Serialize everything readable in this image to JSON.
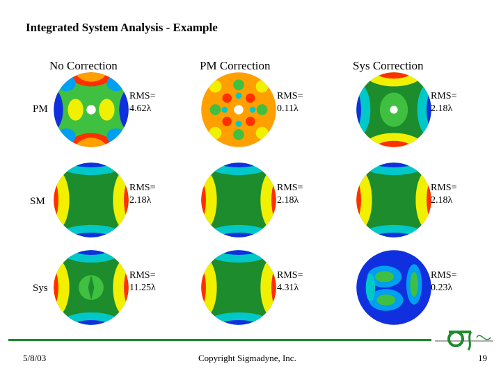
{
  "title": "Integrated System Analysis - Example",
  "columns": [
    "No Correction",
    "PM Correction",
    "Sys Correction"
  ],
  "rows": [
    "PM",
    "SM",
    "Sys"
  ],
  "cells": [
    [
      {
        "rms_label": "RMS=",
        "rms_value": "4.62λ"
      },
      {
        "rms_label": "RMS=",
        "rms_value": "0.11λ"
      },
      {
        "rms_label": "RMS=",
        "rms_value": "2.18λ"
      }
    ],
    [
      {
        "rms_label": "RMS=",
        "rms_value": "2.18λ"
      },
      {
        "rms_label": "RMS=",
        "rms_value": "2.18λ"
      },
      {
        "rms_label": "RMS=",
        "rms_value": "2.18λ"
      }
    ],
    [
      {
        "rms_label": "RMS=",
        "rms_value": "11.25λ"
      },
      {
        "rms_label": "RMS=",
        "rms_value": "4.31λ"
      },
      {
        "rms_label": "RMS=",
        "rms_value": "0.23λ"
      }
    ]
  ],
  "footer": {
    "date": "5/8/03",
    "copyright": "Copyright Sigmadyne, Inc.",
    "page": "19"
  },
  "colors": {
    "accent_line": "#1e8a2e",
    "contour_scale": [
      "#1030e0",
      "#00a0f0",
      "#00c8c8",
      "#1c8c2c",
      "#40c040",
      "#f0f000",
      "#ffa000",
      "#ff3000"
    ]
  }
}
